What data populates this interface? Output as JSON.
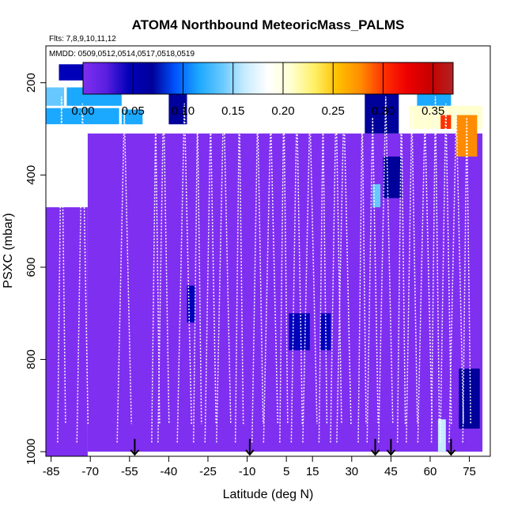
{
  "chart_data": {
    "type": "heatmap",
    "title": "ATOM4 Northbound MeteoricMass_PALMS",
    "annotations": [
      "Flts: 7,8,9,10,11,12",
      "MMDD: 0509,0512,0514,0517,0518,0519"
    ],
    "xlabel": "Latitude (deg N)",
    "ylabel": "PSXC (mbar)",
    "xlim": [
      -87,
      83
    ],
    "ylim": [
      1010,
      120
    ],
    "x_ticks": [
      -85,
      -70,
      -55,
      -40,
      -25,
      -10,
      5,
      15,
      30,
      45,
      60,
      75
    ],
    "x_tick_labels": [
      "-85",
      "-70",
      "-55",
      "-40",
      "-25",
      "-10",
      "5",
      "15",
      "30",
      "45",
      "60",
      "75"
    ],
    "y_ticks": [
      200,
      400,
      600,
      800,
      1000
    ],
    "y_tick_labels": [
      "200",
      "400",
      "600",
      "800",
      "1000"
    ],
    "colorbar": {
      "min": 0.0,
      "max": 0.37,
      "ticks": [
        0.0,
        0.05,
        0.1,
        0.15,
        0.2,
        0.25,
        0.3,
        0.35
      ],
      "tick_labels": [
        "0.00",
        "0.05",
        "0.10",
        "0.15",
        "0.20",
        "0.25",
        "0.30",
        "0.35"
      ],
      "colors": [
        "#7f2ff0",
        "#5a1fe0",
        "#0000b8",
        "#00009a",
        "#0055ff",
        "#1ba8ff",
        "#66c8ff",
        "#c8ecff",
        "#ffffff",
        "#ffffd0",
        "#fff066",
        "#ffc000",
        "#ff8c00",
        "#ff3000",
        "#ee0000",
        "#c80000",
        "#b22222"
      ]
    },
    "arrow_latitudes": [
      -53,
      -9,
      39,
      45,
      68
    ],
    "regions": [
      {
        "lat": [
          -87,
          -71
        ],
        "p": [
          470,
          1010
        ],
        "value": 0.0
      },
      {
        "lat": [
          -71,
          80
        ],
        "p": [
          310,
          1000
        ],
        "value": 0.01
      },
      {
        "lat": [
          -87,
          -80
        ],
        "p": [
          210,
          250
        ],
        "value": 0.14
      },
      {
        "lat": [
          -79,
          -58
        ],
        "p": [
          210,
          250
        ],
        "value": 0.12
      },
      {
        "lat": [
          -87,
          -59
        ],
        "p": [
          255,
          290
        ],
        "value": 0.12
      },
      {
        "lat": [
          -58,
          -50
        ],
        "p": [
          258,
          290
        ],
        "value": 0.11
      },
      {
        "lat": [
          -82,
          -62
        ],
        "p": [
          160,
          195
        ],
        "value": 0.05
      },
      {
        "lat": [
          -40,
          -33
        ],
        "p": [
          210,
          290
        ],
        "value": 0.06
      },
      {
        "lat": [
          35,
          48
        ],
        "p": [
          160,
          310
        ],
        "value": 0.06
      },
      {
        "lat": [
          55,
          68
        ],
        "p": [
          190,
          250
        ],
        "value": 0.12
      },
      {
        "lat": [
          52,
          80
        ],
        "p": [
          250,
          300
        ],
        "value": 0.2
      },
      {
        "lat": [
          64,
          68
        ],
        "p": [
          270,
          300
        ],
        "value": 0.29
      },
      {
        "lat": [
          70,
          78
        ],
        "p": [
          270,
          360
        ],
        "value": 0.27
      },
      {
        "lat": [
          38,
          41
        ],
        "p": [
          420,
          470
        ],
        "value": 0.13
      },
      {
        "lat": [
          42,
          49
        ],
        "p": [
          360,
          450
        ],
        "value": 0.06
      },
      {
        "lat": [
          6,
          14
        ],
        "p": [
          700,
          780
        ],
        "value": 0.05
      },
      {
        "lat": [
          18,
          22
        ],
        "p": [
          700,
          780
        ],
        "value": 0.05
      },
      {
        "lat": [
          -33,
          -30
        ],
        "p": [
          640,
          720
        ],
        "value": 0.05
      },
      {
        "lat": [
          71,
          79
        ],
        "p": [
          820,
          950
        ],
        "value": 0.06
      },
      {
        "lat": [
          63,
          66
        ],
        "p": [
          930,
          1000
        ],
        "value": 0.17
      }
    ],
    "profile_latitudes": [
      -81,
      -73,
      -57,
      -45,
      -42,
      -34,
      -29,
      -24,
      -19,
      -13,
      -6,
      -1,
      4,
      9,
      14,
      19,
      24,
      27,
      34,
      38,
      43,
      49,
      53,
      58,
      62,
      66,
      70,
      74
    ]
  }
}
